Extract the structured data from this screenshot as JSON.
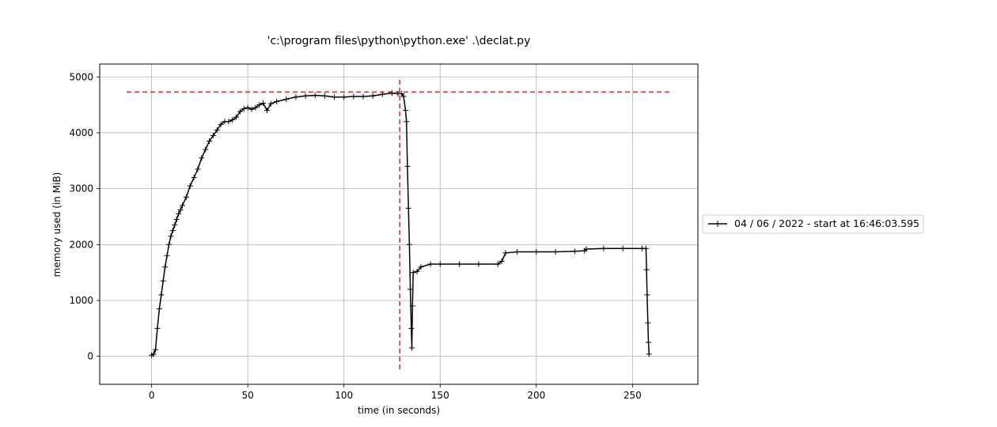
{
  "chart_data": {
    "type": "line",
    "title": "'c:\\program files\\python\\python.exe' .\\declat.py",
    "xlabel": "time (in seconds)",
    "ylabel": "memory used (in MiB)",
    "xlim": [
      -27,
      284
    ],
    "ylim": [
      -500,
      5230
    ],
    "xticks": [
      0,
      50,
      100,
      150,
      200,
      250
    ],
    "yticks": [
      0,
      1000,
      2000,
      3000,
      4000,
      5000
    ],
    "grid": true,
    "legend_position": "right-outside",
    "series": [
      {
        "name": "04 / 06 / 2022 - start at 16:46:03.595",
        "color": "#000000",
        "marker": "+",
        "points": [
          [
            0,
            20
          ],
          [
            1,
            40
          ],
          [
            2,
            120
          ],
          [
            3,
            500
          ],
          [
            4,
            850
          ],
          [
            5,
            1100
          ],
          [
            6,
            1350
          ],
          [
            7,
            1600
          ],
          [
            8,
            1800
          ],
          [
            9,
            2000
          ],
          [
            10,
            2150
          ],
          [
            11,
            2250
          ],
          [
            12,
            2350
          ],
          [
            13,
            2450
          ],
          [
            14,
            2550
          ],
          [
            15,
            2620
          ],
          [
            16,
            2700
          ],
          [
            18,
            2850
          ],
          [
            20,
            3050
          ],
          [
            22,
            3200
          ],
          [
            24,
            3350
          ],
          [
            26,
            3550
          ],
          [
            28,
            3700
          ],
          [
            30,
            3850
          ],
          [
            32,
            3950
          ],
          [
            34,
            4050
          ],
          [
            36,
            4150
          ],
          [
            38,
            4200
          ],
          [
            40,
            4200
          ],
          [
            42,
            4230
          ],
          [
            44,
            4280
          ],
          [
            46,
            4380
          ],
          [
            48,
            4430
          ],
          [
            50,
            4450
          ],
          [
            52,
            4420
          ],
          [
            54,
            4450
          ],
          [
            56,
            4500
          ],
          [
            58,
            4530
          ],
          [
            60,
            4400
          ],
          [
            62,
            4520
          ],
          [
            65,
            4560
          ],
          [
            70,
            4600
          ],
          [
            75,
            4640
          ],
          [
            80,
            4660
          ],
          [
            85,
            4670
          ],
          [
            90,
            4660
          ],
          [
            95,
            4640
          ],
          [
            100,
            4640
          ],
          [
            105,
            4650
          ],
          [
            110,
            4650
          ],
          [
            115,
            4660
          ],
          [
            120,
            4690
          ],
          [
            125,
            4710
          ],
          [
            128,
            4700
          ],
          [
            130,
            4700
          ],
          [
            131,
            4650
          ],
          [
            132,
            4400
          ],
          [
            132.5,
            4200
          ],
          [
            133,
            3400
          ],
          [
            133.5,
            2650
          ],
          [
            134,
            2000
          ],
          [
            134.5,
            1200
          ],
          [
            135,
            500
          ],
          [
            135.3,
            150
          ],
          [
            135.6,
            900
          ],
          [
            136,
            1500
          ],
          [
            138,
            1520
          ],
          [
            140,
            1600
          ],
          [
            145,
            1650
          ],
          [
            150,
            1650
          ],
          [
            160,
            1650
          ],
          [
            170,
            1650
          ],
          [
            180,
            1650
          ],
          [
            182,
            1700
          ],
          [
            184,
            1850
          ],
          [
            190,
            1870
          ],
          [
            200,
            1870
          ],
          [
            210,
            1870
          ],
          [
            220,
            1880
          ],
          [
            225,
            1890
          ],
          [
            226,
            1920
          ],
          [
            235,
            1930
          ],
          [
            245,
            1930
          ],
          [
            255,
            1930
          ],
          [
            257,
            1930
          ],
          [
            257.3,
            1550
          ],
          [
            257.6,
            1100
          ],
          [
            258,
            600
          ],
          [
            258.3,
            250
          ],
          [
            258.6,
            40
          ]
        ]
      }
    ],
    "reference_lines": [
      {
        "orientation": "horizontal",
        "value": 4730,
        "from": -13,
        "to": 271,
        "color": "#e02020",
        "style": "dashed"
      },
      {
        "orientation": "vertical",
        "value": 129,
        "from": -230,
        "to": 4970,
        "color": "#e02020",
        "style": "dashed"
      }
    ]
  }
}
